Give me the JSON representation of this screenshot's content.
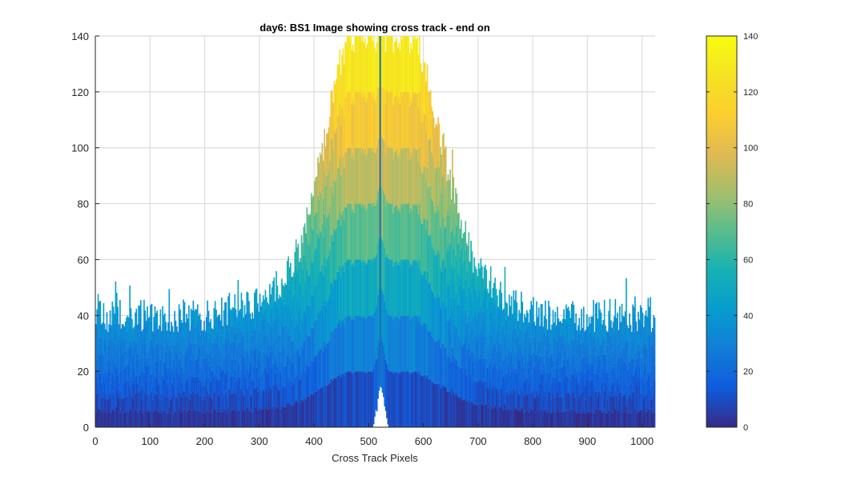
{
  "chart_data": {
    "type": "area",
    "title": "day6: BS1  Image showing cross track - end on",
    "xlabel": "Cross Track Pixels",
    "ylabel": "",
    "xlim": [
      0,
      1024
    ],
    "ylim": [
      0,
      140
    ],
    "xticks": [
      0,
      100,
      200,
      300,
      400,
      500,
      600,
      700,
      800,
      900,
      1000
    ],
    "yticks": [
      0,
      20,
      40,
      60,
      80,
      100,
      120,
      140
    ],
    "grid": true,
    "colormap": "parula",
    "colorbar": {
      "limits": [
        0,
        140
      ],
      "ticks": [
        0,
        20,
        40,
        60,
        80,
        100,
        120,
        140
      ],
      "location": "right"
    },
    "envelope_profile": {
      "x": [
        0,
        100,
        200,
        300,
        350,
        380,
        400,
        420,
        440,
        460,
        480,
        500,
        520,
        540,
        560,
        580,
        600,
        620,
        640,
        660,
        680,
        700,
        750,
        800,
        900,
        1024
      ],
      "y": [
        40,
        40,
        40,
        45,
        54,
        68,
        85,
        105,
        125,
        140,
        140,
        140,
        140,
        140,
        140,
        140,
        130,
        112,
        95,
        80,
        66,
        56,
        46,
        41,
        40,
        40
      ]
    },
    "center_gap": {
      "x": 521,
      "y_range": [
        0,
        18
      ]
    },
    "center_line": {
      "x": 521
    }
  }
}
